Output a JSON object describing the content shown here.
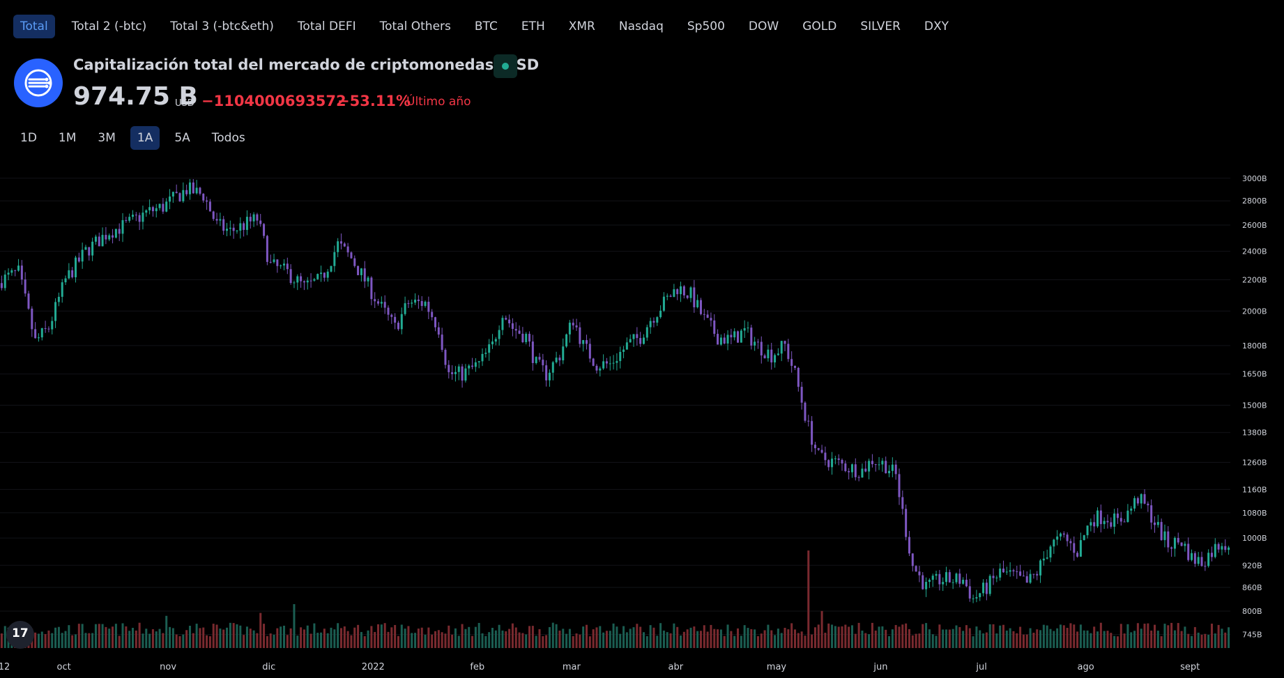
{
  "tabs": [
    "Total",
    "Total 2 (-btc)",
    "Total 3 (-btc&eth)",
    "Total DEFI",
    "Total Others",
    "BTC",
    "ETH",
    "XMR",
    "Nasdaq",
    "Sp500",
    "DOW",
    "GOLD",
    "SILVER",
    "DXY"
  ],
  "active_tab": 0,
  "header": {
    "title": "Capitalización total del mercado de criptomonedas, USD",
    "price": "974.75 B",
    "currency": "USD",
    "change": "−1104000693572",
    "change_pct": "−53.11%",
    "period": "Último año"
  },
  "ranges": [
    "1D",
    "1M",
    "3M",
    "1A",
    "5A",
    "Todos"
  ],
  "active_range": 3,
  "colors": {
    "up": "#22ab94",
    "down": "#7e57c2",
    "vol_up": "#1b5e52",
    "vol_down": "#7a2a2f",
    "accent": "#2962ff"
  },
  "badge": "17",
  "chart_data": {
    "type": "candlestick",
    "y_scale": "log",
    "ylim": [
      730,
      3050
    ],
    "y_ticks": [
      "3000B",
      "2800B",
      "2600B",
      "2400B",
      "2200B",
      "2000B",
      "1800B",
      "1650B",
      "1500B",
      "1380B",
      "1260B",
      "1160B",
      "1080B",
      "1000B",
      "920B",
      "860B",
      "800B",
      "745B"
    ],
    "y_tick_values": [
      3000,
      2800,
      2600,
      2400,
      2200,
      2000,
      1800,
      1650,
      1500,
      1380,
      1260,
      1160,
      1080,
      1000,
      920,
      860,
      800,
      745
    ],
    "x_labels": [
      "12",
      "oct",
      "nov",
      "dic",
      "2022",
      "feb",
      "mar",
      "abr",
      "may",
      "jun",
      "jul",
      "ago",
      "sept"
    ],
    "x_label_days": [
      0,
      19,
      50,
      80,
      111,
      142,
      170,
      201,
      231,
      262,
      292,
      323,
      354
    ],
    "close_path": [
      [
        0,
        2200
      ],
      [
        5,
        2250
      ],
      [
        10,
        1820
      ],
      [
        14,
        1900
      ],
      [
        19,
        2200
      ],
      [
        25,
        2400
      ],
      [
        32,
        2550
      ],
      [
        37,
        2600
      ],
      [
        43,
        2700
      ],
      [
        48,
        2750
      ],
      [
        55,
        2900
      ],
      [
        60,
        2850
      ],
      [
        64,
        2600
      ],
      [
        68,
        2550
      ],
      [
        72,
        2600
      ],
      [
        76,
        2650
      ],
      [
        80,
        2300
      ],
      [
        85,
        2250
      ],
      [
        90,
        2150
      ],
      [
        95,
        2200
      ],
      [
        100,
        2450
      ],
      [
        104,
        2350
      ],
      [
        108,
        2200
      ],
      [
        112,
        2050
      ],
      [
        117,
        1900
      ],
      [
        121,
        2050
      ],
      [
        126,
        2050
      ],
      [
        130,
        1900
      ],
      [
        133,
        1650
      ],
      [
        137,
        1650
      ],
      [
        142,
        1700
      ],
      [
        146,
        1800
      ],
      [
        149,
        2000
      ],
      [
        152,
        1900
      ],
      [
        156,
        1850
      ],
      [
        159,
        1700
      ],
      [
        162,
        1650
      ],
      [
        166,
        1750
      ],
      [
        170,
        1950
      ],
      [
        173,
        1800
      ],
      [
        177,
        1700
      ],
      [
        181,
        1700
      ],
      [
        186,
        1800
      ],
      [
        190,
        1850
      ],
      [
        193,
        1950
      ],
      [
        197,
        2050
      ],
      [
        201,
        2150
      ],
      [
        205,
        2100
      ],
      [
        209,
        1950
      ],
      [
        213,
        1850
      ],
      [
        217,
        1830
      ],
      [
        221,
        1880
      ],
      [
        225,
        1800
      ],
      [
        229,
        1750
      ],
      [
        233,
        1800
      ],
      [
        236,
        1650
      ],
      [
        240,
        1400
      ],
      [
        243,
        1280
      ],
      [
        248,
        1260
      ],
      [
        252,
        1240
      ],
      [
        256,
        1230
      ],
      [
        259,
        1270
      ],
      [
        263,
        1250
      ],
      [
        266,
        1210
      ],
      [
        268,
        1080
      ],
      [
        271,
        920
      ],
      [
        275,
        860
      ],
      [
        279,
        880
      ],
      [
        283,
        880
      ],
      [
        286,
        880
      ],
      [
        289,
        830
      ],
      [
        293,
        860
      ],
      [
        297,
        900
      ],
      [
        301,
        890
      ],
      [
        305,
        870
      ],
      [
        308,
        900
      ],
      [
        312,
        980
      ],
      [
        316,
        1000
      ],
      [
        320,
        960
      ],
      [
        324,
        1060
      ],
      [
        328,
        1070
      ],
      [
        332,
        1050
      ],
      [
        335,
        1080
      ],
      [
        338,
        1130
      ],
      [
        341,
        1090
      ],
      [
        344,
        1030
      ],
      [
        347,
        980
      ],
      [
        351,
        990
      ],
      [
        354,
        940
      ],
      [
        357,
        930
      ],
      [
        360,
        960
      ],
      [
        363,
        990
      ],
      [
        366,
        975
      ]
    ],
    "volume_peaks": [
      [
        49,
        0.33
      ],
      [
        77,
        0.36
      ],
      [
        87,
        0.45
      ],
      [
        240,
        1.0
      ],
      [
        244,
        0.38
      ]
    ],
    "total_days": 366
  }
}
